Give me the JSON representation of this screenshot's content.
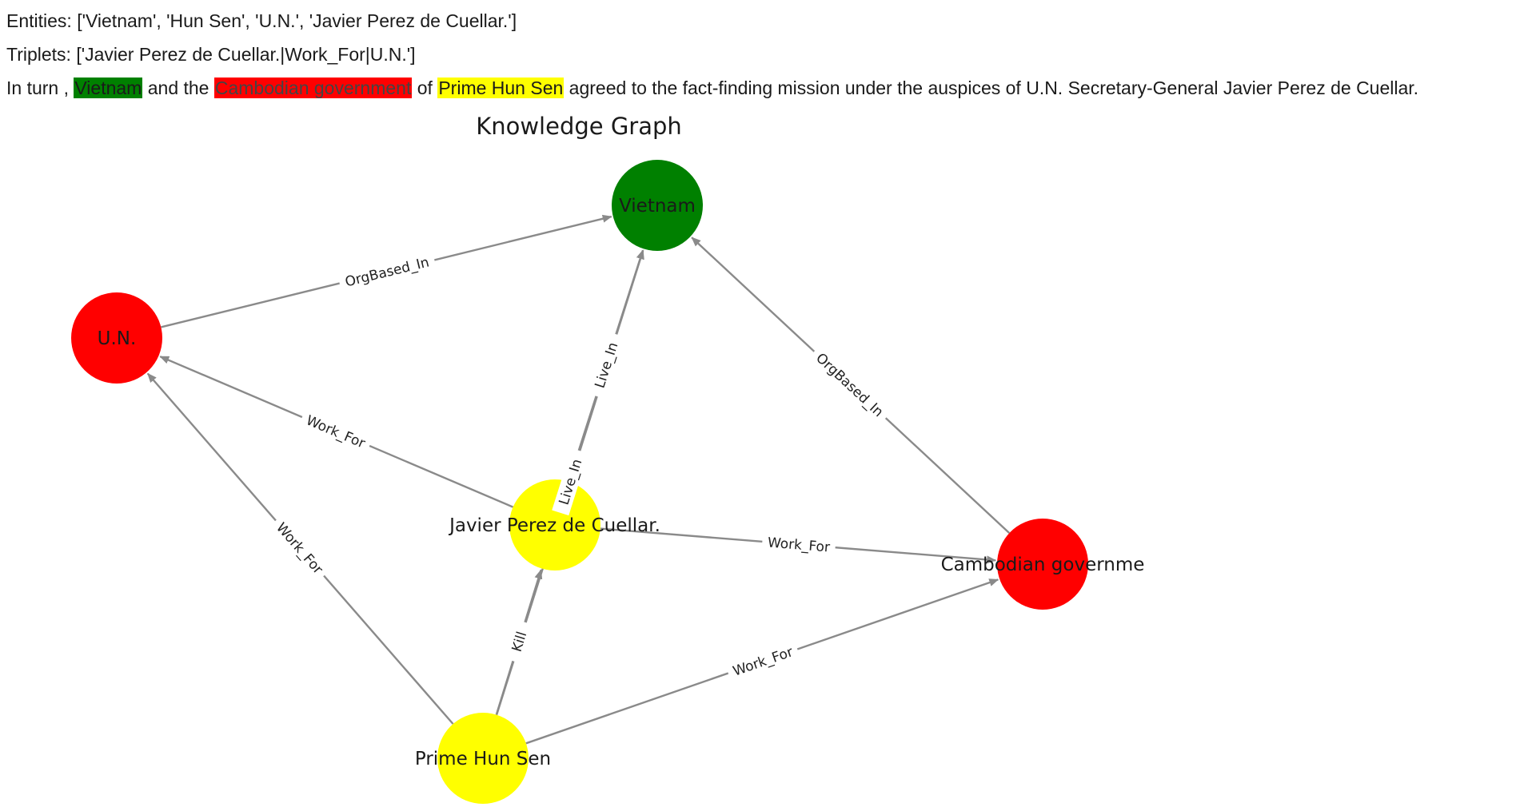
{
  "header": {
    "entities_text": "Entities: ['Vietnam', 'Hun Sen', 'U.N.', 'Javier Perez de Cuellar.']",
    "triplets_text": "Triplets: ['Javier Perez de Cuellar.|Work_For|U.N.']"
  },
  "sentence": {
    "segments": [
      {
        "text": "In turn , "
      },
      {
        "text": "Vietnam",
        "highlight": "#008000",
        "text_color": "#1a1a1a"
      },
      {
        "text": " and the "
      },
      {
        "text": "Cambodian government",
        "highlight": "#ff0000",
        "text_color": "#444444"
      },
      {
        "text": " of "
      },
      {
        "text": "Prime Hun Sen",
        "highlight": "#ffff00",
        "text_color": "#1a1a1a"
      },
      {
        "text": " agreed to the fact-finding mission under the auspices of U.N. Secretary-General Javier Perez de Cuellar."
      }
    ]
  },
  "graph": {
    "title": "Knowledge Graph",
    "nodes": [
      {
        "id": "vietnam",
        "label": "Vietnam",
        "color": "#008000"
      },
      {
        "id": "un",
        "label": "U.N.",
        "color": "#ff0000"
      },
      {
        "id": "javier",
        "label": "Javier Perez de Cuellar.",
        "color": "#ffff00"
      },
      {
        "id": "cambodian",
        "label": "Cambodian governme",
        "color": "#ff0000"
      },
      {
        "id": "hunsen",
        "label": "Prime Hun Sen",
        "color": "#ffff00"
      }
    ],
    "edges": [
      {
        "source": "un",
        "target": "vietnam",
        "label": "OrgBased_In"
      },
      {
        "source": "javier",
        "target": "un",
        "label": "Work_For"
      },
      {
        "source": "javier",
        "target": "vietnam",
        "label": "Live_In"
      },
      {
        "source": "hunsen",
        "target": "vietnam",
        "label": "Live_In"
      },
      {
        "source": "cambodian",
        "target": "vietnam",
        "label": "OrgBased_In"
      },
      {
        "source": "javier",
        "target": "cambodian",
        "label": "Work_For"
      },
      {
        "source": "hunsen",
        "target": "un",
        "label": "Work_For"
      },
      {
        "source": "hunsen",
        "target": "javier",
        "label": "Kill"
      },
      {
        "source": "hunsen",
        "target": "cambodian",
        "label": "Work_For"
      }
    ]
  }
}
